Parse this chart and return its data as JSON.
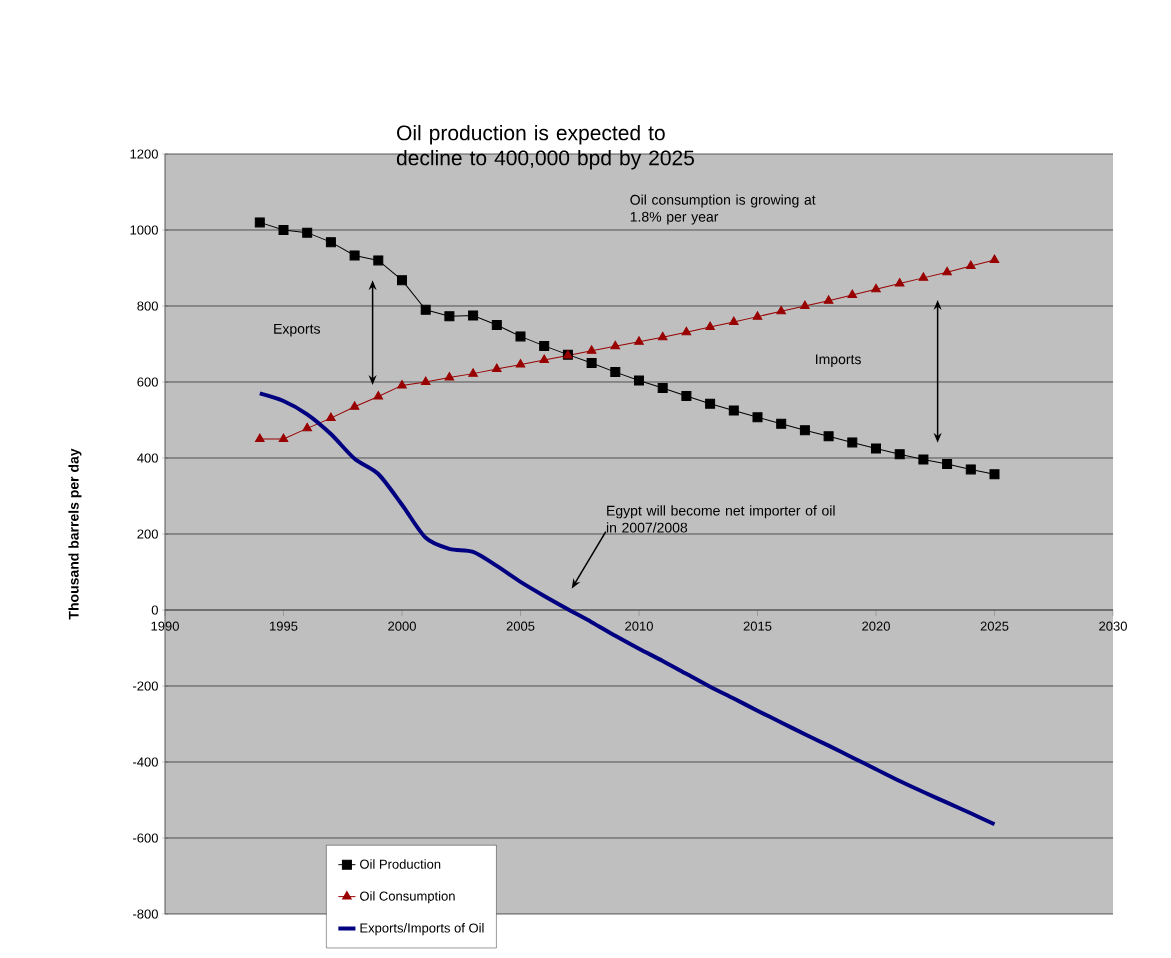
{
  "chart_data": {
    "type": "line",
    "title": "Oil production is expected to decline to 400,000 bpd by 2025",
    "ylabel": "Thousand barrels per day",
    "x": [
      1994,
      1995,
      1996,
      1997,
      1998,
      1999,
      2000,
      2001,
      2002,
      2003,
      2004,
      2005,
      2006,
      2007,
      2008,
      2009,
      2010,
      2011,
      2012,
      2013,
      2014,
      2015,
      2016,
      2017,
      2018,
      2019,
      2020,
      2021,
      2022,
      2023,
      2024,
      2025
    ],
    "series": [
      {
        "name": "Oil Production",
        "color": "#000000",
        "marker": "square",
        "values": [
          1020,
          1000,
          993,
          968,
          933,
          920,
          868,
          790,
          773,
          775,
          750,
          720,
          695,
          672,
          650,
          626,
          604,
          584,
          563,
          543,
          525,
          507,
          490,
          473,
          457,
          441,
          425,
          410,
          396,
          384,
          370,
          357
        ]
      },
      {
        "name": "Oil Consumption",
        "color": "#990000",
        "marker": "triangle",
        "values": [
          450,
          450,
          478,
          505,
          535,
          562,
          591,
          600,
          612,
          622,
          634,
          646,
          658,
          670,
          682,
          694,
          706,
          718,
          731,
          745,
          758,
          772,
          786,
          800,
          814,
          829,
          844,
          859,
          874,
          889,
          905,
          921
        ]
      },
      {
        "name": "Exports/Imports of Oil",
        "color": "#000080",
        "marker": "none",
        "values": [
          570,
          550,
          515,
          463,
          398,
          358,
          277,
          190,
          161,
          153,
          116,
          74,
          37,
          2,
          -32,
          -68,
          -102,
          -134,
          -168,
          -202,
          -233,
          -265,
          -296,
          -327,
          -357,
          -388,
          -419,
          -450,
          -479,
          -507,
          -535,
          -564
        ]
      }
    ],
    "xlim": [
      1990,
      2030
    ],
    "xticks": [
      1990,
      1995,
      2000,
      2005,
      2010,
      2015,
      2020,
      2025,
      2030
    ],
    "ylim": [
      -800,
      1200
    ],
    "yticks": [
      -800,
      -600,
      -400,
      -200,
      0,
      200,
      400,
      600,
      800,
      1000,
      1200
    ],
    "grid": "y",
    "legend": "bottom",
    "annotations": [
      "Oil consumption is growing at 1.8% per year",
      "Exports",
      "Imports",
      "Egypt will become net importer of oil in 2007/2008"
    ]
  }
}
